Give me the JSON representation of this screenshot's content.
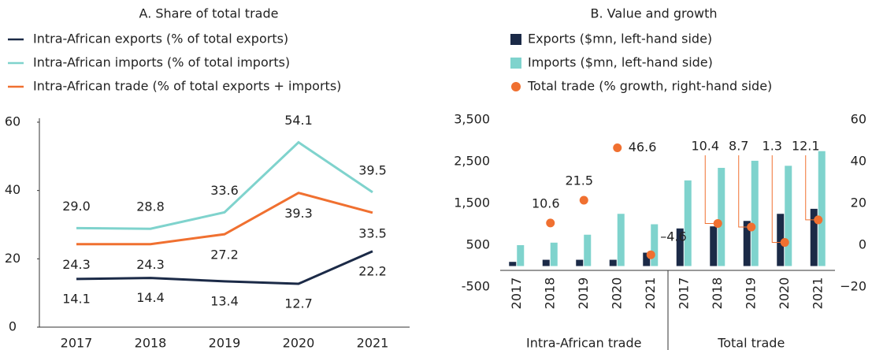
{
  "chart_data": [
    {
      "type": "line",
      "title": "A. Share of total trade",
      "categories": [
        "2017",
        "2018",
        "2019",
        "2020",
        "2021"
      ],
      "ylim": [
        0,
        60
      ],
      "yticks": [
        0,
        20,
        40,
        60
      ],
      "series": [
        {
          "name": "Intra-African exports (% of total exports)",
          "color": "#1b2a47",
          "values": [
            14.1,
            14.4,
            13.4,
            12.7,
            22.2
          ],
          "value_labels": [
            "14.1",
            "14.4",
            "13.4",
            "12.7",
            "22.2"
          ]
        },
        {
          "name": "Intra-African imports (% of total imports)",
          "color": "#7fd3cd",
          "values": [
            29.0,
            28.8,
            33.6,
            54.1,
            39.5
          ],
          "value_labels": [
            "29.0",
            "28.8",
            "33.6",
            "54.1",
            "39.5"
          ]
        },
        {
          "name": "Intra-African trade (% of total exports + imports)",
          "color": "#f07030",
          "values": [
            24.3,
            24.3,
            27.2,
            39.3,
            33.5
          ],
          "value_labels": [
            "24.3",
            "24.3",
            "27.2",
            "39.3",
            "33.5"
          ]
        }
      ]
    },
    {
      "type": "bar",
      "title": "B. Value and growth",
      "categories": [
        "2017",
        "2018",
        "2019",
        "2020",
        "2021",
        "2017",
        "2018",
        "2019",
        "2020",
        "2021"
      ],
      "groups": [
        "Intra-African trade",
        "Total trade"
      ],
      "ylim": [
        -500,
        3500
      ],
      "yticks": [
        -500,
        500,
        {
          "value": 1500,
          "label": "1,500"
        },
        {
          "value": 2500,
          "label": "2,500"
        },
        {
          "value": 3500,
          "label": "3,500"
        }
      ],
      "y2lim": [
        -20,
        60
      ],
      "y2ticks": [
        {
          "value": -20,
          "label": "−20"
        },
        0,
        20,
        40,
        60
      ],
      "series": [
        {
          "name": "Exports ($mn, left-hand side)",
          "type": "bar",
          "color": "#1b2a47",
          "values": [
            100,
            150,
            150,
            150,
            320,
            900,
            950,
            1080,
            1250,
            1370
          ]
        },
        {
          "name": "Imports ($mn, left-hand side)",
          "type": "bar",
          "color": "#7fd3cd",
          "values": [
            500,
            560,
            750,
            1250,
            1000,
            2050,
            2350,
            2520,
            2400,
            2750
          ]
        },
        {
          "name": "Total trade (% growth, right-hand side)",
          "type": "scatter",
          "axis": "y2",
          "color": "#f07030",
          "values": [
            null,
            10.6,
            21.5,
            46.6,
            -4.6,
            null,
            10.4,
            8.7,
            1.3,
            12.1
          ],
          "value_labels": [
            null,
            "10.6",
            "21.5",
            "46.6",
            "–4.6",
            null,
            "10.4",
            "8.7",
            "1.3",
            "12.1"
          ]
        }
      ]
    }
  ]
}
